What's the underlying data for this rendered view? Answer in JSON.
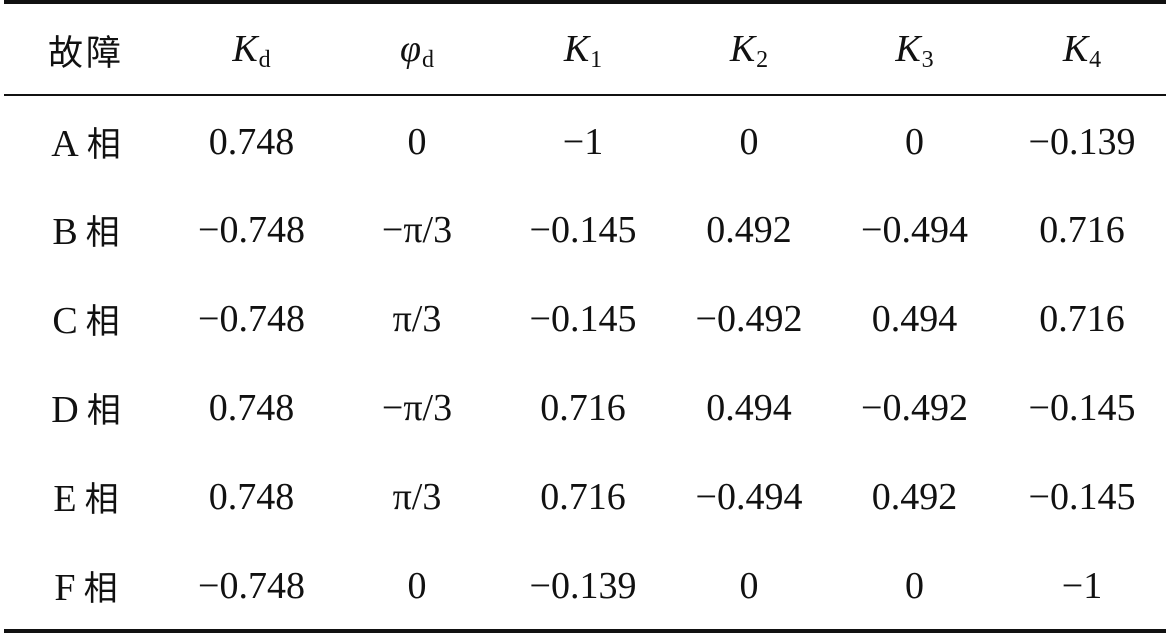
{
  "table": {
    "header": {
      "fault": "故障",
      "columns": [
        {
          "symbol": "K",
          "sub": "d"
        },
        {
          "symbol": "φ",
          "sub": "d"
        },
        {
          "symbol": "K",
          "sub": "1"
        },
        {
          "symbol": "K",
          "sub": "2"
        },
        {
          "symbol": "K",
          "sub": "3"
        },
        {
          "symbol": "K",
          "sub": "4"
        }
      ]
    },
    "rows": [
      {
        "letter": "A",
        "xiang": "相",
        "values": [
          "0.748",
          "0",
          "−1",
          "0",
          "0",
          "−0.139"
        ]
      },
      {
        "letter": "B",
        "xiang": "相",
        "values": [
          "−0.748",
          "−π/3",
          "−0.145",
          "0.492",
          "−0.494",
          "0.716"
        ]
      },
      {
        "letter": "C",
        "xiang": "相",
        "values": [
          "−0.748",
          "π/3",
          "−0.145",
          "−0.492",
          "0.494",
          "0.716"
        ]
      },
      {
        "letter": "D",
        "xiang": "相",
        "values": [
          "0.748",
          "−π/3",
          "0.716",
          "0.494",
          "−0.492",
          "−0.145"
        ]
      },
      {
        "letter": "E",
        "xiang": "相",
        "values": [
          "0.748",
          "π/3",
          "0.716",
          "−0.494",
          "0.492",
          "−0.145"
        ]
      },
      {
        "letter": "F",
        "xiang": "相",
        "values": [
          "−0.748",
          "0",
          "−0.139",
          "0",
          "0",
          "−1"
        ]
      }
    ]
  }
}
